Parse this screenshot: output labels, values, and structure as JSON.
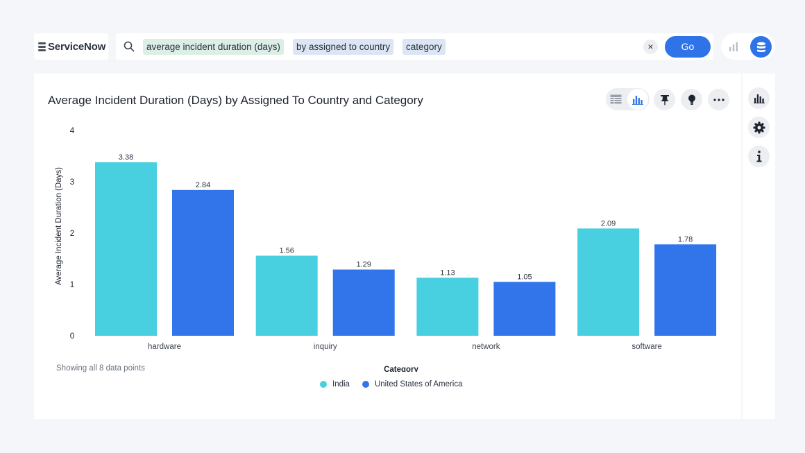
{
  "logo": {
    "text": "ServiceNow"
  },
  "search": {
    "tokens": [
      {
        "label": "average incident duration (days)",
        "style": "green"
      },
      {
        "label": "by assigned to country",
        "style": "blue"
      },
      {
        "label": "category",
        "style": "blue"
      }
    ],
    "clear_icon": "×",
    "go_label": "Go"
  },
  "mode_toggle": {
    "chart_icon": "bar-chart-icon",
    "data_icon": "database-icon"
  },
  "card": {
    "title": "Average Incident Duration (Days) by Assigned To Country and Category",
    "toolbar_icons": [
      "table-icon",
      "bar-chart-icon",
      "pin-icon",
      "lightbulb-icon",
      "more-icon"
    ],
    "footnote": "Showing all 8 data points"
  },
  "side_rail": {
    "icons": [
      "bar-chart-icon",
      "gear-icon",
      "info-icon"
    ]
  },
  "colors": {
    "india": "#48cfe0",
    "usa": "#3275ea",
    "accent": "#2f73e8"
  },
  "chart_data": {
    "type": "bar",
    "categories": [
      "hardware",
      "inquiry",
      "network",
      "software"
    ],
    "series": [
      {
        "name": "India",
        "values": [
          3.38,
          1.56,
          1.13,
          2.09
        ],
        "color": "#48cfe0"
      },
      {
        "name": "United States of America",
        "values": [
          2.84,
          1.29,
          1.05,
          1.78
        ],
        "color": "#3275ea"
      }
    ],
    "xlabel": "Category",
    "ylabel": "Average Incident Duration (Days)",
    "ylim": [
      0,
      4
    ],
    "yticks": [
      "0",
      "1",
      "2",
      "3",
      "4"
    ],
    "grid": false,
    "legend_position": "bottom"
  }
}
